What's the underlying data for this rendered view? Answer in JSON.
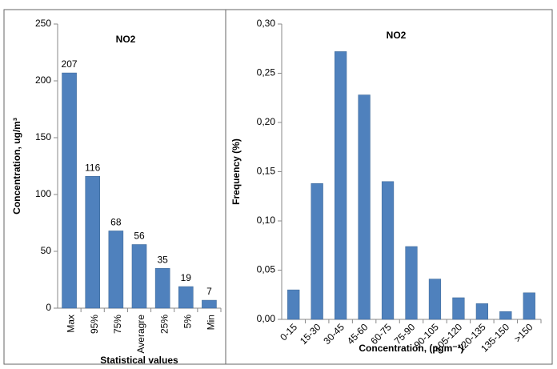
{
  "chart_data": [
    {
      "type": "bar",
      "title": "NO2",
      "x_label": "Statistical values",
      "y_label": "Concentration, ug/m³",
      "categories": [
        "Max",
        "95%",
        "75%",
        "Averagre",
        "25%",
        "5%",
        "Min"
      ],
      "values": [
        207,
        116,
        68,
        56,
        35,
        19,
        7
      ],
      "data_labels": true,
      "color": "#4f81bd",
      "ylim": [
        0,
        250
      ],
      "yticks": [
        0,
        50,
        100,
        150,
        200,
        250
      ]
    },
    {
      "type": "bar",
      "title": "NO2",
      "x_label": "Concentration, (µgm⁻³)",
      "y_label": "Frequency (%)",
      "categories": [
        "0-15",
        "15-30",
        "30-45",
        "45-60",
        "60-75",
        "75-90",
        "90-105",
        "105-120",
        "120-135",
        "135-150",
        ">150"
      ],
      "values": [
        0.03,
        0.138,
        0.272,
        0.228,
        0.14,
        0.074,
        0.041,
        0.022,
        0.016,
        0.008,
        0.027
      ],
      "data_labels": false,
      "color": "#4f81bd",
      "ylim": [
        0,
        0.3
      ],
      "yticks": [
        {
          "value": 0,
          "label": "0,00"
        },
        {
          "value": 0.05,
          "label": "0,05"
        },
        {
          "value": 0.1,
          "label": "0,10"
        },
        {
          "value": 0.15,
          "label": "0,15"
        },
        {
          "value": 0.2,
          "label": "0,20"
        },
        {
          "value": 0.25,
          "label": "0,25"
        },
        {
          "value": 0.3,
          "label": "0,30"
        }
      ]
    }
  ]
}
